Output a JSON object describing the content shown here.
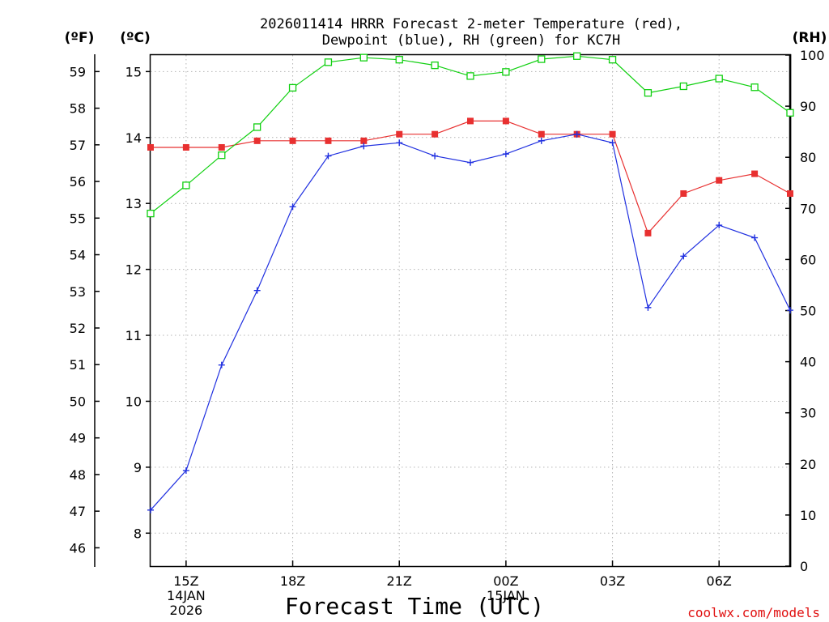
{
  "chart_data": {
    "type": "line",
    "title": "2026011414 HRRR Forecast 2-meter Temperature (red),",
    "subtitle": "Dewpoint (blue), RH (green) for KC7H",
    "xlabel": "Forecast Time (UTC)",
    "credit": "coolwx.com/models",
    "unit_labels": {
      "fahrenheit": "(ºF)",
      "celsius": "(ºC)",
      "rh": "(RH)"
    },
    "x": [
      14,
      15,
      16,
      17,
      18,
      19,
      20,
      21,
      22,
      23,
      24,
      25,
      26,
      27,
      28,
      29,
      30,
      31,
      32
    ],
    "xlim": [
      14,
      32
    ],
    "x_ticks": [
      {
        "x": 15,
        "lines": [
          "15Z",
          "14JAN",
          "2026"
        ]
      },
      {
        "x": 18,
        "lines": [
          "18Z"
        ]
      },
      {
        "x": 21,
        "lines": [
          "21Z"
        ]
      },
      {
        "x": 24,
        "lines": [
          "00Z",
          "15JAN"
        ]
      },
      {
        "x": 27,
        "lines": [
          "03Z"
        ]
      },
      {
        "x": 30,
        "lines": [
          "06Z"
        ]
      }
    ],
    "celsius_axis": {
      "range": [
        7.5,
        15.25
      ],
      "ticks": [
        "8",
        "9",
        "10",
        "11",
        "12",
        "13",
        "14",
        "15"
      ]
    },
    "fahrenheit_axis": {
      "ticks": [
        "46",
        "47",
        "48",
        "49",
        "50",
        "51",
        "52",
        "53",
        "54",
        "55",
        "56",
        "57",
        "58",
        "59"
      ]
    },
    "rh_axis": {
      "range": [
        0,
        100
      ],
      "ticks": [
        "0",
        "10",
        "20",
        "30",
        "40",
        "50",
        "60",
        "70",
        "80",
        "90",
        "100"
      ]
    },
    "series": [
      {
        "name": "Temperature",
        "axis": "celsius",
        "color": "#e83030",
        "marker": "filled-square",
        "values": [
          13.85,
          13.85,
          13.85,
          13.95,
          13.95,
          13.95,
          13.95,
          14.05,
          14.05,
          14.25,
          14.25,
          14.05,
          14.05,
          14.05,
          12.55,
          13.15,
          13.35,
          13.45,
          13.15
        ]
      },
      {
        "name": "Dewpoint",
        "axis": "celsius",
        "color": "#2030e0",
        "marker": "plus",
        "values": [
          8.35,
          8.95,
          10.55,
          11.68,
          12.95,
          13.72,
          13.87,
          13.92,
          13.72,
          13.62,
          13.75,
          13.95,
          14.05,
          13.92,
          11.42,
          12.2,
          12.67,
          12.48,
          11.38
        ]
      },
      {
        "name": "RH",
        "axis": "rh",
        "color": "#10d010",
        "marker": "open-square",
        "values": [
          69,
          74.5,
          80.4,
          85.9,
          93.6,
          98.6,
          99.5,
          99.1,
          98,
          95.9,
          96.7,
          99.2,
          99.8,
          99.1,
          92.6,
          93.9,
          95.4,
          93.7,
          88.7
        ]
      }
    ]
  }
}
